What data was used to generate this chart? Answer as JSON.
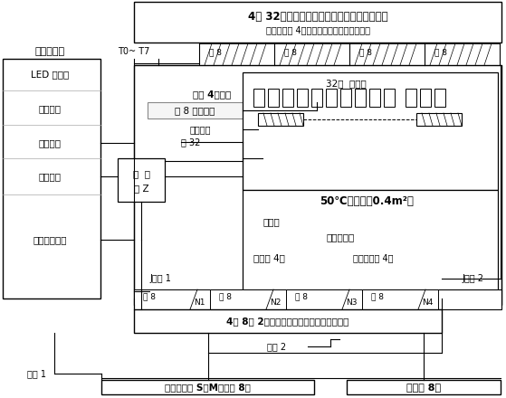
{
  "title_top": "4组 32套电路板的冷藏、冷冻、化霜温差信号",
  "subtitle_top": "（仿真输入 4种不同状态组合的温差信号）",
  "controller_label": "试验控制器",
  "controller_items": [
    "LED 显示器",
    "按键电路",
    "箱温输入",
    "恒温控制",
    "负载均衡分配"
  ],
  "t_label": "T0~ T7",
  "ge8_labels": [
    "各 8",
    "各 8",
    "各 8",
    "各 8"
  ],
  "power_label": "电源 4路各驱",
  "board_label": "动 8 套电路板",
  "load_label": "负载输出",
  "ge32_label": "各 32",
  "relay_label1": "继  电",
  "relay_label2": "器 Z",
  "board32_label": "32套  电路板",
  "temp_box_label": "50℃温度箱（0.4m²）",
  "sensor_label": "感温头",
  "heat_source_label": "箱内供热源",
  "heater4_label": "加热器 4套",
  "compressor4_label": "压机主绕组 4套",
  "j_wen1_label": "J欠温 1",
  "j_wen2_label": "J欠温 2",
  "n_labels": [
    "N1",
    "N2",
    "N3",
    "N4"
  ],
  "ge8_bottom": [
    "各 8",
    "各 8",
    "各 8",
    "各 8"
  ],
  "switch_label": "4套 8选 2模拟压缩机、加热器输出通道切换",
  "chao_wen2_label": "超温 2",
  "chao_wen1_label": "超温 1",
  "compressor_label": "模拟压缩机 S、M统组各 8套",
  "heater8_label": "加热器 8套",
  "bg_color": "#ffffff",
  "line_color": "#000000"
}
